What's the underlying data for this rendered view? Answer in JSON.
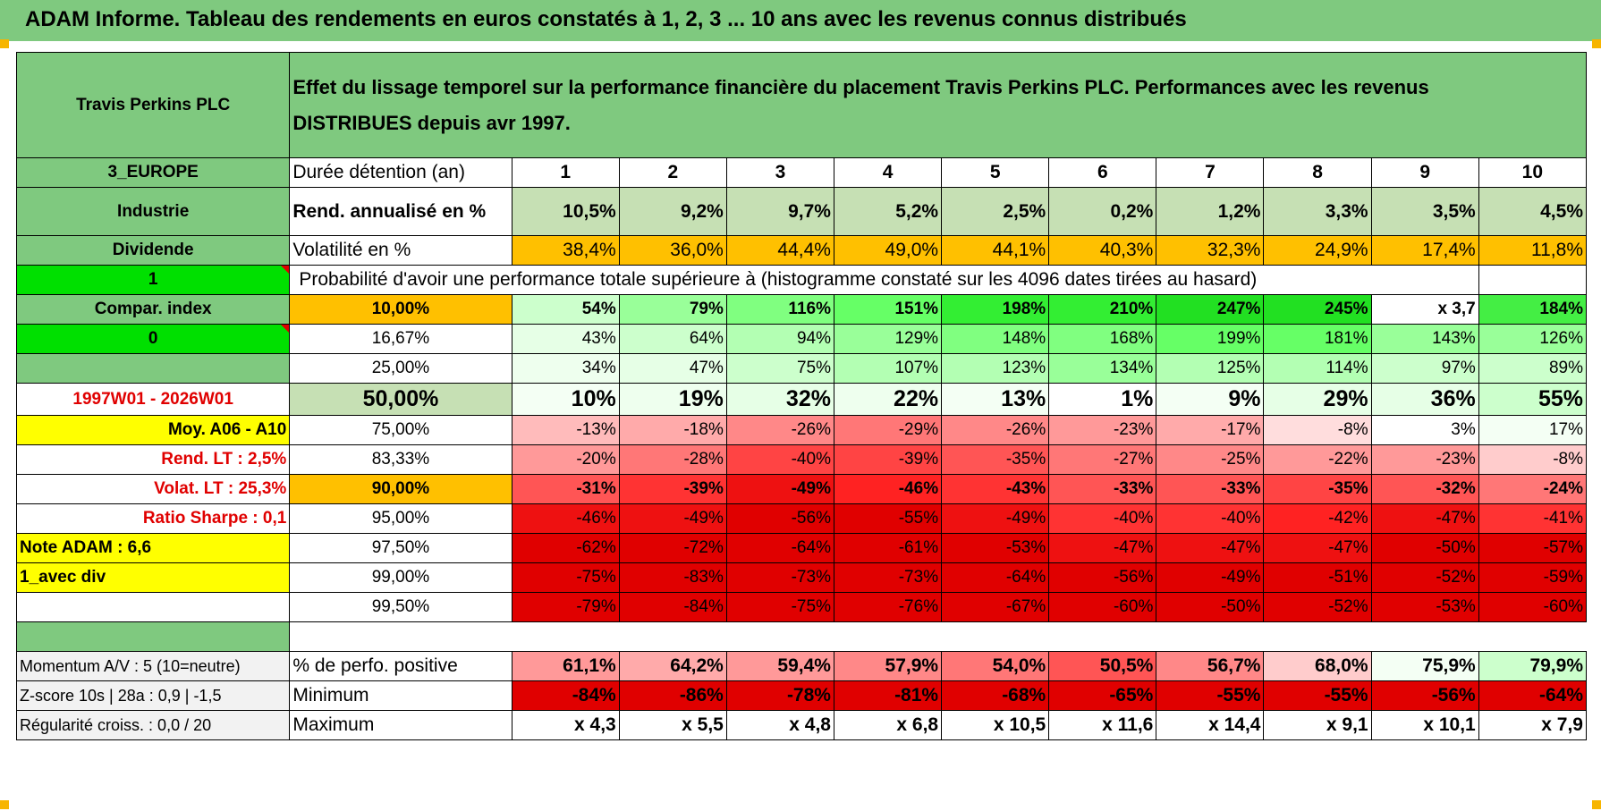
{
  "title": "ADAM Informe. Tableau des rendements en euros constatés à 1, 2, 3 ... 10 ans avec les revenus connus distribués",
  "header": {
    "company": "Travis Perkins PLC",
    "description_line1": "Effet du lissage temporel sur la performance financière du placement Travis Perkins PLC. Performances avec les revenus",
    "description_line2": "DISTRIBUES depuis avr 1997."
  },
  "rows": {
    "duration": {
      "side": "3_EUROPE",
      "label": "Durée détention (an)",
      "values": [
        "1",
        "2",
        "3",
        "4",
        "5",
        "6",
        "7",
        "8",
        "9",
        "10"
      ]
    },
    "rend": {
      "side": "Industrie",
      "label": "Rend. annualisé en %",
      "values": [
        "10,5%",
        "9,2%",
        "9,7%",
        "5,2%",
        "2,5%",
        "0,2%",
        "1,2%",
        "3,3%",
        "3,5%",
        "4,5%"
      ]
    },
    "vol": {
      "side": "Dividende",
      "label": "Volatilité en %",
      "values": [
        "38,4%",
        "36,0%",
        "44,4%",
        "49,0%",
        "44,1%",
        "40,3%",
        "32,3%",
        "24,9%",
        "17,4%",
        "11,8%"
      ]
    },
    "prob_header": {
      "side": "1",
      "label": "Probabilité d'avoir une performance totale supérieure à (histogramme constaté sur les 4096 dates tirées au hasard)"
    }
  },
  "prob_rows": [
    {
      "side": "Compar. index",
      "pct": "10,00%",
      "values": [
        "54%",
        "79%",
        "116%",
        "151%",
        "198%",
        "210%",
        "247%",
        "245%",
        "x 3,7",
        "184%"
      ]
    },
    {
      "side": "0",
      "pct": "16,67%",
      "values": [
        "43%",
        "64%",
        "94%",
        "129%",
        "148%",
        "168%",
        "199%",
        "181%",
        "143%",
        "126%"
      ]
    },
    {
      "side": "",
      "pct": "25,00%",
      "values": [
        "34%",
        "47%",
        "75%",
        "107%",
        "123%",
        "134%",
        "125%",
        "114%",
        "97%",
        "89%"
      ]
    },
    {
      "side": "1997W01 - 2026W01",
      "pct": "50,00%",
      "values": [
        "10%",
        "19%",
        "32%",
        "22%",
        "13%",
        "1%",
        "9%",
        "29%",
        "36%",
        "55%"
      ]
    },
    {
      "side": "Moy. A06 - A10",
      "pct": "75,00%",
      "values": [
        "-13%",
        "-18%",
        "-26%",
        "-29%",
        "-26%",
        "-23%",
        "-17%",
        "-8%",
        "3%",
        "17%"
      ]
    },
    {
      "side": "Rend. LT :    2,5%",
      "pct": "83,33%",
      "values": [
        "-20%",
        "-28%",
        "-40%",
        "-39%",
        "-35%",
        "-27%",
        "-25%",
        "-22%",
        "-23%",
        "-8%"
      ]
    },
    {
      "side": "Volat. LT :    25,3%",
      "pct": "90,00%",
      "values": [
        "-31%",
        "-39%",
        "-49%",
        "-46%",
        "-43%",
        "-33%",
        "-33%",
        "-35%",
        "-32%",
        "-24%"
      ]
    },
    {
      "side": "Ratio Sharpe :    0,1",
      "pct": "95,00%",
      "values": [
        "-46%",
        "-49%",
        "-56%",
        "-55%",
        "-49%",
        "-40%",
        "-40%",
        "-42%",
        "-47%",
        "-41%"
      ]
    },
    {
      "side": "Note ADAM : 6,6",
      "pct": "97,50%",
      "values": [
        "-62%",
        "-72%",
        "-64%",
        "-61%",
        "-53%",
        "-47%",
        "-47%",
        "-47%",
        "-50%",
        "-57%"
      ]
    },
    {
      "side": "1_avec div",
      "pct": "99,00%",
      "values": [
        "-75%",
        "-83%",
        "-73%",
        "-73%",
        "-64%",
        "-56%",
        "-49%",
        "-51%",
        "-52%",
        "-59%"
      ]
    },
    {
      "side": "",
      "pct": "99,50%",
      "values": [
        "-79%",
        "-84%",
        "-75%",
        "-76%",
        "-67%",
        "-60%",
        "-50%",
        "-52%",
        "-53%",
        "-60%"
      ]
    }
  ],
  "prob_colors": [
    [
      "#ccffcc",
      "#99ff99",
      "#80ff80",
      "#66ff66",
      "#33ee33",
      "#33ee33",
      "#22e022",
      "#22e022",
      "#ffffff",
      "#44ee44"
    ],
    [
      "#e6ffe6",
      "#ccffcc",
      "#b3ffb3",
      "#99ff99",
      "#80ff80",
      "#80ff80",
      "#66ff66",
      "#66ff66",
      "#99ff99",
      "#99ff99"
    ],
    [
      "#eeffee",
      "#e6ffe6",
      "#ccffcc",
      "#b3ffb3",
      "#b3ffb3",
      "#99ff99",
      "#b3ffb3",
      "#b3ffb3",
      "#ccffcc",
      "#ccffcc"
    ],
    [
      "#f4fff4",
      "#eeffee",
      "#e6ffe6",
      "#eeffee",
      "#f4fff4",
      "#ffffff",
      "#f4fff4",
      "#e6ffe6",
      "#e6ffe6",
      "#ccffcc"
    ],
    [
      "#ffbbbb",
      "#ffaaaa",
      "#ff8888",
      "#ff7777",
      "#ff8888",
      "#ff9999",
      "#ffaaaa",
      "#ffdddd",
      "#ffffff",
      "#f4fff4"
    ],
    [
      "#ff9999",
      "#ff7777",
      "#ff4444",
      "#ff4444",
      "#ff5555",
      "#ff7777",
      "#ff8888",
      "#ff9999",
      "#ff9999",
      "#ffcccc"
    ],
    [
      "#ff5555",
      "#ff3333",
      "#ee1111",
      "#ff2222",
      "#ff3333",
      "#ff5555",
      "#ff5555",
      "#ff4444",
      "#ff5555",
      "#ff7777"
    ],
    [
      "#ee1111",
      "#ee1111",
      "#e00000",
      "#e00000",
      "#ee1111",
      "#ff3333",
      "#ff3333",
      "#ff2222",
      "#ee1111",
      "#ff3333"
    ],
    [
      "#e00000",
      "#e00000",
      "#e00000",
      "#e00000",
      "#e00000",
      "#ee1111",
      "#ee1111",
      "#ee1111",
      "#e00000",
      "#e00000"
    ],
    [
      "#e00000",
      "#e00000",
      "#e00000",
      "#e00000",
      "#e00000",
      "#e00000",
      "#e00000",
      "#e00000",
      "#e00000",
      "#e00000"
    ],
    [
      "#e00000",
      "#e00000",
      "#e00000",
      "#e00000",
      "#e00000",
      "#e00000",
      "#e00000",
      "#e00000",
      "#e00000",
      "#e00000"
    ]
  ],
  "footer": [
    {
      "side": "Momentum A/V : 5 (10=neutre)",
      "label": "% de perfo. positive",
      "values": [
        "61,1%",
        "64,2%",
        "59,4%",
        "57,9%",
        "54,0%",
        "50,5%",
        "56,7%",
        "68,0%",
        "75,9%",
        "79,9%"
      ],
      "colors": [
        "#ff9999",
        "#ffaaaa",
        "#ff9999",
        "#ff8888",
        "#ff7777",
        "#ff5555",
        "#ff8888",
        "#ffcccc",
        "#f4fff4",
        "#ccffcc"
      ]
    },
    {
      "side": "Z-score 10s | 28a : 0,9 | -1,5",
      "label": "Minimum",
      "values": [
        "-84%",
        "-86%",
        "-78%",
        "-81%",
        "-68%",
        "-65%",
        "-55%",
        "-55%",
        "-56%",
        "-64%"
      ],
      "colors": [
        "#e00000",
        "#e00000",
        "#e00000",
        "#e00000",
        "#e00000",
        "#e00000",
        "#e00000",
        "#e00000",
        "#e00000",
        "#e00000"
      ]
    },
    {
      "side": "Régularité croiss. : 0,0 / 20",
      "label": "Maximum",
      "values": [
        "x 4,3",
        "x 5,5",
        "x 4,8",
        "x 6,8",
        "x 10,5",
        "x 11,6",
        "x 14,4",
        "x 9,1",
        "x 10,1",
        "x 7,9"
      ],
      "colors": [
        "#ffffff",
        "#ffffff",
        "#ffffff",
        "#ffffff",
        "#ffffff",
        "#ffffff",
        "#ffffff",
        "#ffffff",
        "#ffffff",
        "#ffffff"
      ]
    }
  ],
  "colors": {
    "header_green": "#7fc97f",
    "light_green": "#c6e0b4",
    "bright_green": "#00e000",
    "orange": "#ffc000",
    "yellow": "#ffff00",
    "label_red": "#e00000"
  }
}
